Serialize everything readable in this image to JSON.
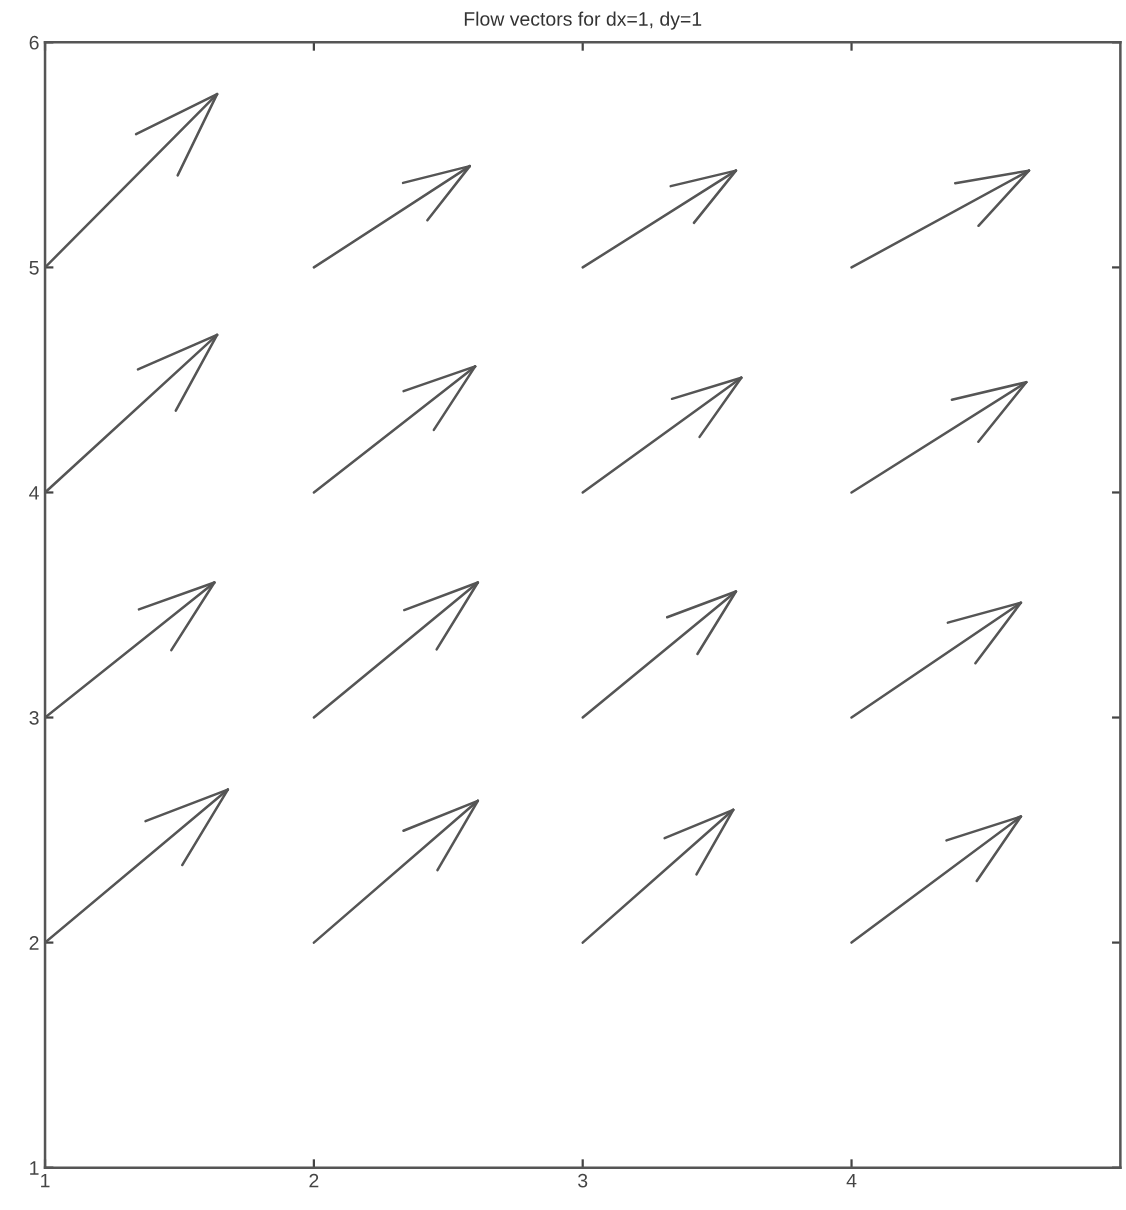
{
  "chart_data": {
    "type": "line",
    "title": "Flow vectors for dx=1, dy=1",
    "xlim": [
      1,
      5
    ],
    "ylim": [
      1,
      6
    ],
    "xticks": [
      1,
      2,
      3,
      4
    ],
    "yticks": [
      1,
      2,
      3,
      4,
      5,
      6
    ],
    "grid": false,
    "legend": false,
    "marker": "none",
    "line_style": "solid",
    "series": [
      {
        "color": "#555555",
        "x": [
          1,
          1.64
        ],
        "values": [
          5,
          5.77
        ]
      },
      {
        "color": "#555555",
        "x": [
          2,
          2.58
        ],
        "values": [
          5,
          5.45
        ]
      },
      {
        "color": "#555555",
        "x": [
          3,
          3.57
        ],
        "values": [
          5,
          5.43
        ]
      },
      {
        "color": "#555555",
        "x": [
          4,
          4.66
        ],
        "values": [
          5,
          5.43
        ]
      },
      {
        "color": "#555555",
        "x": [
          1,
          1.64
        ],
        "values": [
          4,
          4.7
        ]
      },
      {
        "color": "#555555",
        "x": [
          2,
          2.6
        ],
        "values": [
          4,
          4.56
        ]
      },
      {
        "color": "#555555",
        "x": [
          3,
          3.59
        ],
        "values": [
          4,
          4.51
        ]
      },
      {
        "color": "#555555",
        "x": [
          4,
          4.65
        ],
        "values": [
          4,
          4.49
        ]
      },
      {
        "color": "#555555",
        "x": [
          1,
          1.63
        ],
        "values": [
          3,
          3.6
        ]
      },
      {
        "color": "#555555",
        "x": [
          2,
          2.61
        ],
        "values": [
          3,
          3.6
        ]
      },
      {
        "color": "#555555",
        "x": [
          3,
          3.57
        ],
        "values": [
          3,
          3.56
        ]
      },
      {
        "color": "#555555",
        "x": [
          4,
          4.63
        ],
        "values": [
          3,
          3.51
        ]
      },
      {
        "color": "#555555",
        "x": [
          1,
          1.68
        ],
        "values": [
          2,
          2.68
        ]
      },
      {
        "color": "#555555",
        "x": [
          2,
          2.61
        ],
        "values": [
          2,
          2.63
        ]
      },
      {
        "color": "#555555",
        "x": [
          3,
          3.56
        ],
        "values": [
          2,
          2.59
        ]
      },
      {
        "color": "#555555",
        "x": [
          4,
          4.63
        ],
        "values": [
          2,
          2.56
        ]
      }
    ]
  }
}
